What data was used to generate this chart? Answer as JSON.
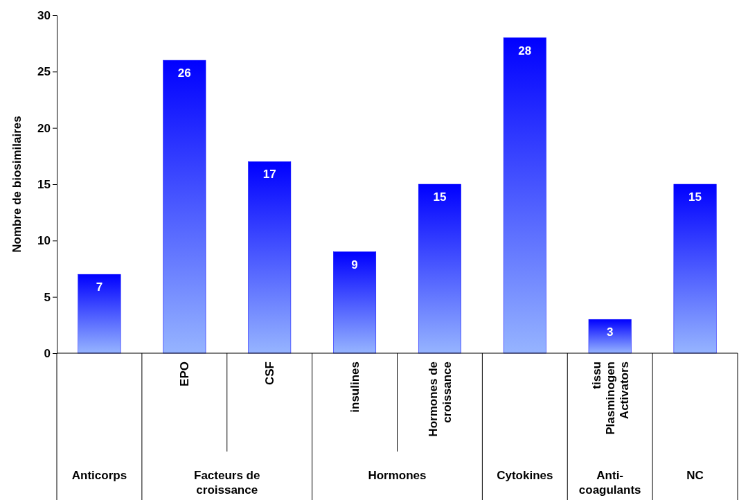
{
  "chart_data": {
    "type": "bar",
    "ylabel": "Nombre de biosimilaires",
    "categories": [
      null,
      "EPO",
      "CSF",
      "insulines",
      "Hormones de croissance",
      null,
      "tissu Plasminogen Activators",
      null
    ],
    "values": [
      7,
      26,
      17,
      9,
      15,
      28,
      3,
      15
    ],
    "color": "#0000ff",
    "ylim": [
      0,
      30
    ],
    "yticks": [
      0,
      5,
      10,
      15,
      20,
      25,
      30
    ],
    "grid": false,
    "data_labels": true,
    "annotations": [
      "Anticorps",
      "Facteurs de croissance",
      "Hormones",
      "Cytokines",
      "Anti-coagulants",
      "NC"
    ]
  }
}
